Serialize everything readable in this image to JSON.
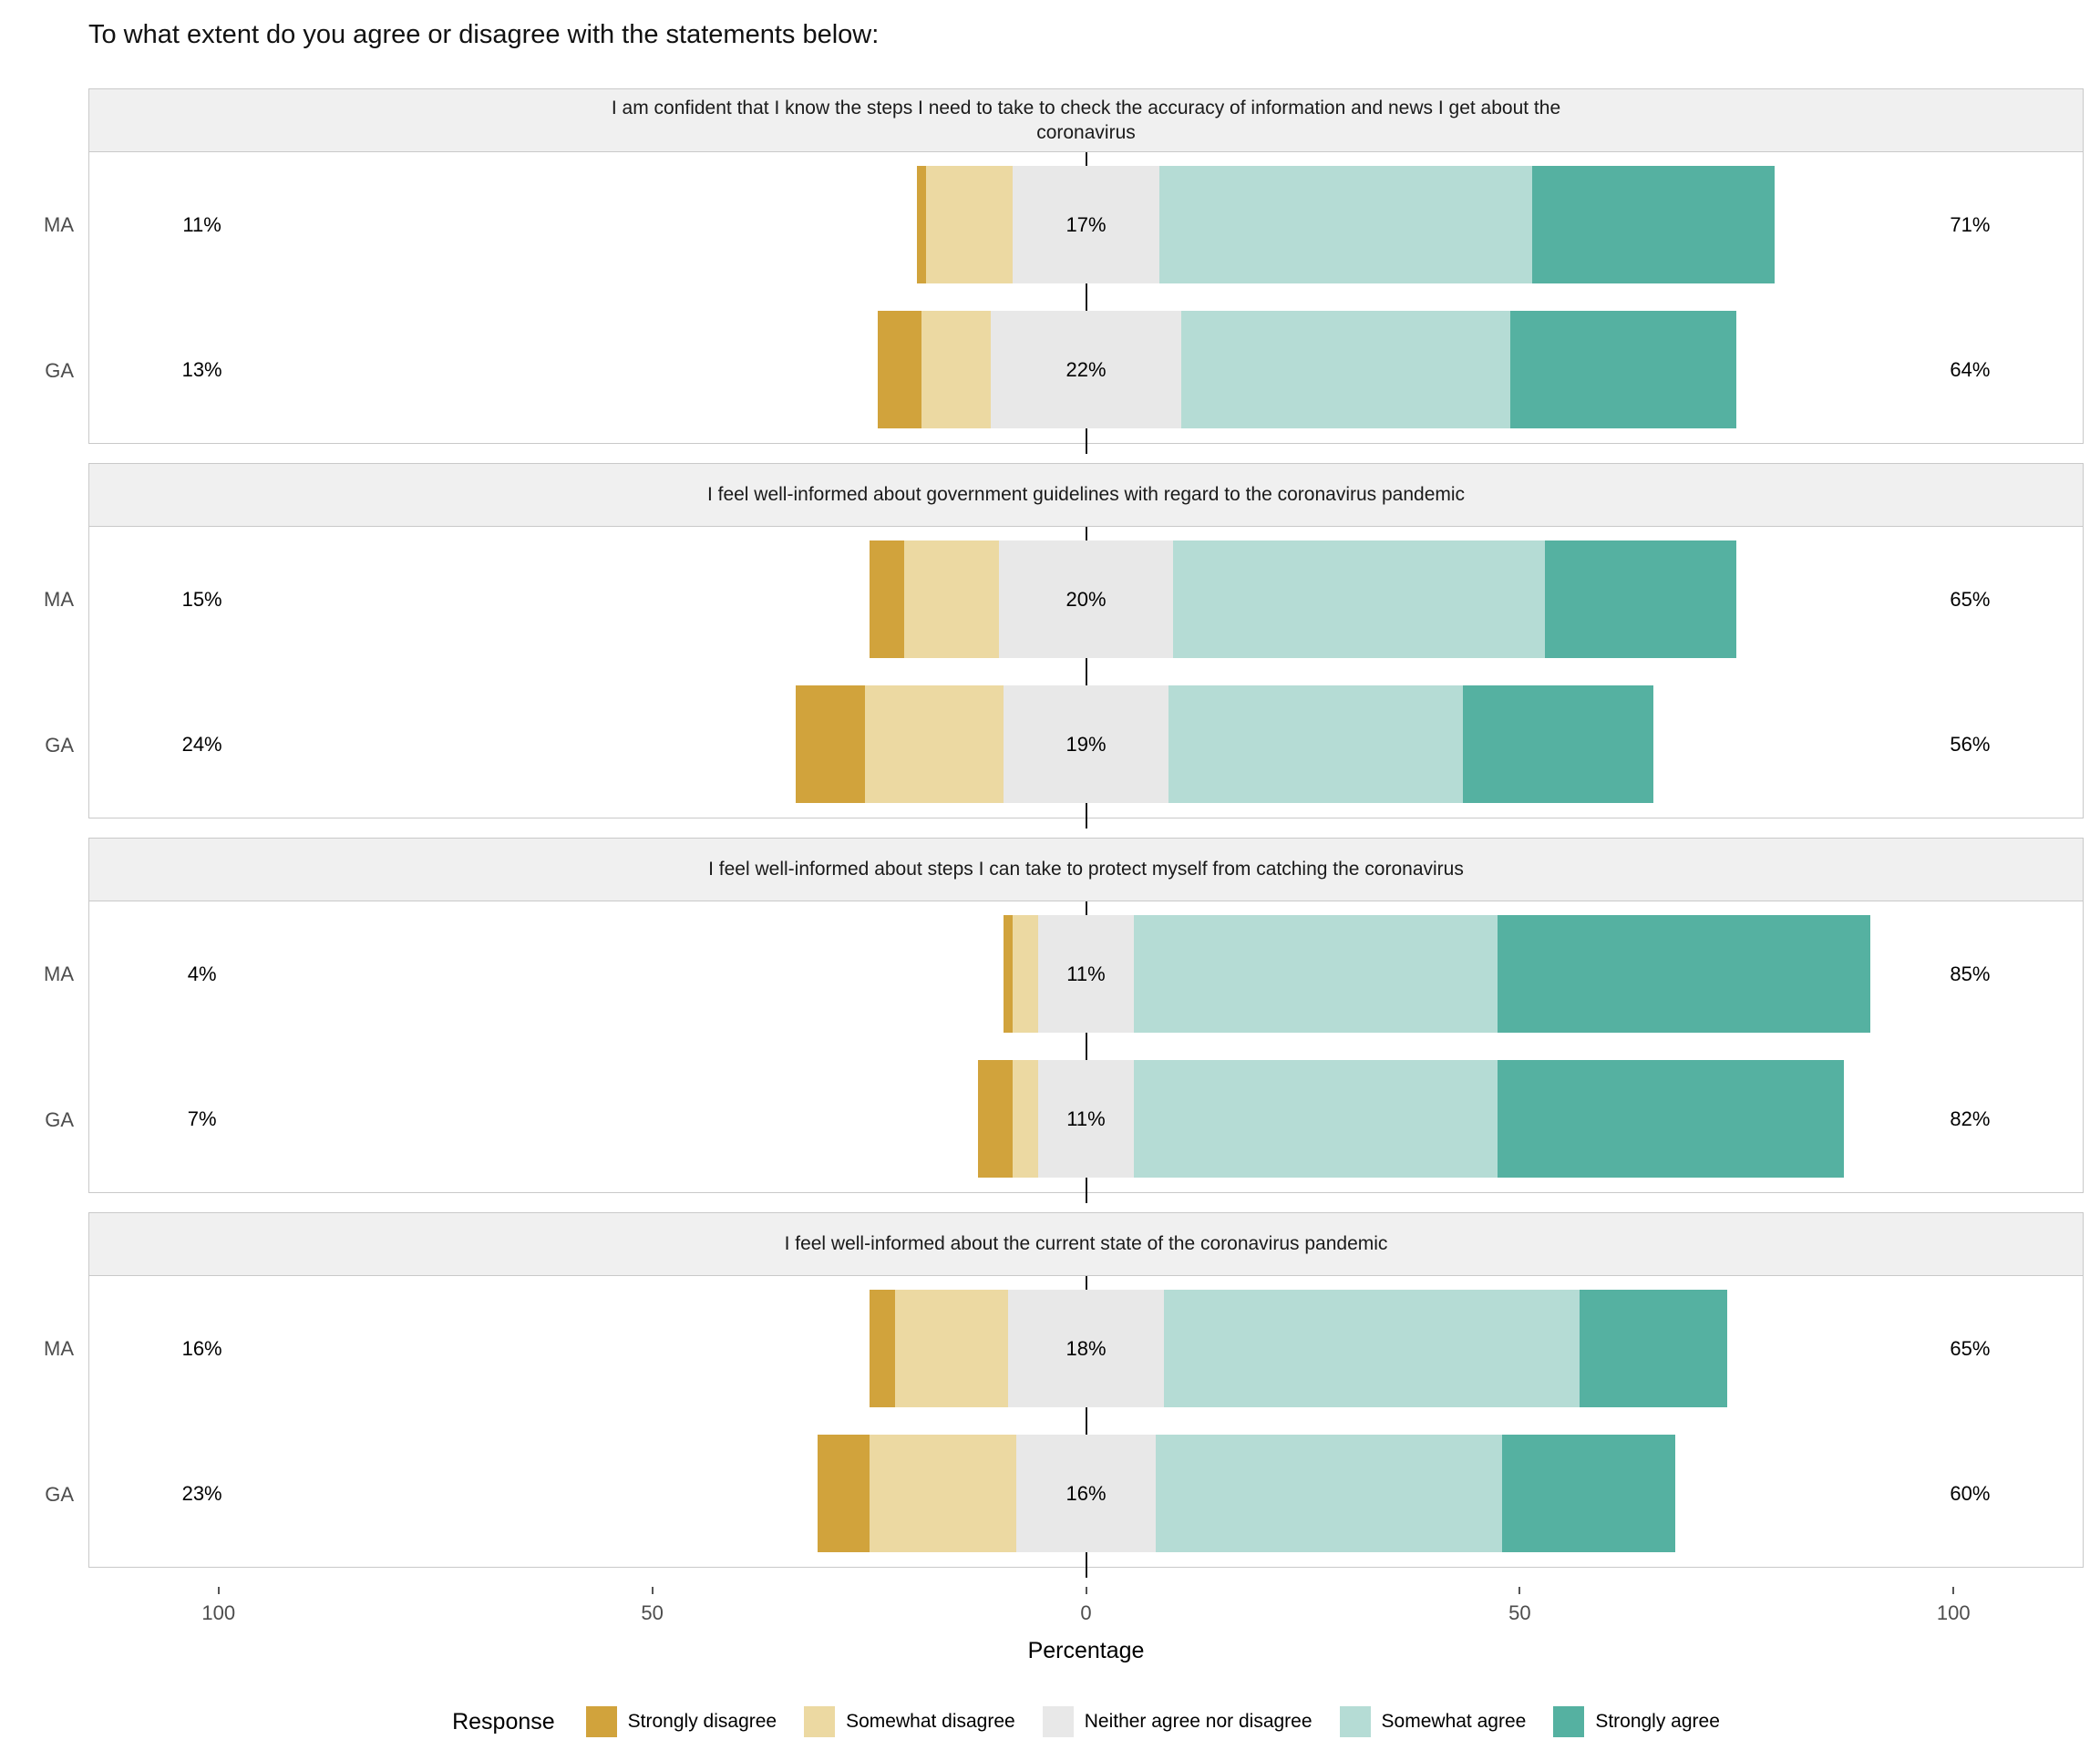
{
  "title": "To what extent do you agree or disagree with the statements below:",
  "axis": {
    "label": "Percentage",
    "ticks": [
      {
        "value": -100,
        "label": "100"
      },
      {
        "value": -50,
        "label": "50"
      },
      {
        "value": 0,
        "label": "0"
      },
      {
        "value": 50,
        "label": "50"
      },
      {
        "value": 100,
        "label": "100"
      }
    ]
  },
  "legend": {
    "title": "Response",
    "items": [
      {
        "key": "strongly-disagree",
        "label": "Strongly disagree",
        "color": "#d1a33c"
      },
      {
        "key": "somewhat-disagree",
        "label": "Somewhat disagree",
        "color": "#ecd9a2"
      },
      {
        "key": "neither",
        "label": "Neither agree nor disagree",
        "color": "#e8e8e8"
      },
      {
        "key": "somewhat-agree",
        "label": "Somewhat agree",
        "color": "#b5dcd5"
      },
      {
        "key": "strongly-agree",
        "label": "Strongly agree",
        "color": "#55b1a1"
      }
    ]
  },
  "chart_data": {
    "type": "bar",
    "variant": "diverging-stacked-likert",
    "x_range": [
      -115,
      115
    ],
    "label_positions": {
      "left": -102,
      "center": 0,
      "right": 102
    },
    "categories": [
      "Strongly disagree",
      "Somewhat disagree",
      "Neither agree nor disagree",
      "Somewhat agree",
      "Strongly agree"
    ],
    "groups": [
      "MA",
      "GA"
    ],
    "panels": [
      {
        "statement": "I am confident that I know the steps I need to take to check the accuracy of information and news I get about the\ncoronavirus",
        "rows": [
          {
            "group": "MA",
            "segments": [
              1,
              10,
              17,
              43,
              28
            ],
            "left_label": "11%",
            "center_label": "17%",
            "right_label": "71%"
          },
          {
            "group": "GA",
            "segments": [
              5,
              8,
              22,
              38,
              26
            ],
            "left_label": "13%",
            "center_label": "22%",
            "right_label": "64%"
          }
        ]
      },
      {
        "statement": "I feel well-informed about government guidelines with regard to the coronavirus pandemic",
        "rows": [
          {
            "group": "MA",
            "segments": [
              4,
              11,
              20,
              43,
              22
            ],
            "left_label": "15%",
            "center_label": "20%",
            "right_label": "65%"
          },
          {
            "group": "GA",
            "segments": [
              8,
              16,
              19,
              34,
              22
            ],
            "left_label": "24%",
            "center_label": "19%",
            "right_label": "56%"
          }
        ]
      },
      {
        "statement": "I feel well-informed about steps I can take to protect myself from catching the coronavirus",
        "rows": [
          {
            "group": "MA",
            "segments": [
              1,
              3,
              11,
              42,
              43
            ],
            "left_label": "4%",
            "center_label": "11%",
            "right_label": "85%"
          },
          {
            "group": "GA",
            "segments": [
              4,
              3,
              11,
              42,
              40
            ],
            "left_label": "7%",
            "center_label": "11%",
            "right_label": "82%"
          }
        ]
      },
      {
        "statement": "I feel well-informed about the current state of the coronavirus pandemic",
        "rows": [
          {
            "group": "MA",
            "segments": [
              3,
              13,
              18,
              48,
              17
            ],
            "left_label": "16%",
            "center_label": "18%",
            "right_label": "65%"
          },
          {
            "group": "GA",
            "segments": [
              6,
              17,
              16,
              40,
              20
            ],
            "left_label": "23%",
            "center_label": "16%",
            "right_label": "60%"
          }
        ]
      }
    ]
  }
}
